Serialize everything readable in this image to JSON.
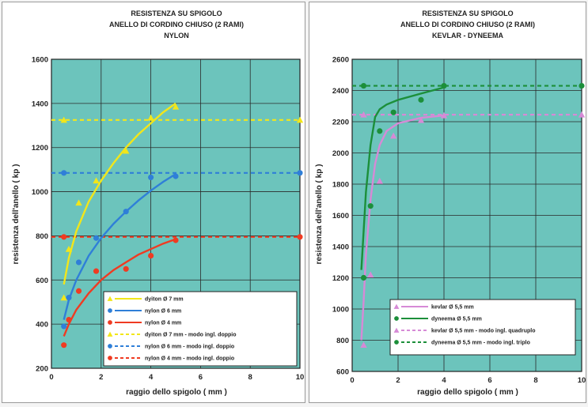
{
  "chart_data": [
    {
      "type": "scatter",
      "title_lines": [
        "RESISTENZA SU SPIGOLO",
        "ANELLO DI CORDINO CHIUSO (2 RAMI)",
        "NYLON"
      ],
      "xlabel": "raggio dello spigolo ( mm )",
      "ylabel": "resistenza dell'anello ( kp )",
      "xlim": [
        0,
        10
      ],
      "ylim": [
        200,
        1600
      ],
      "xticks": [
        "0",
        "2",
        "4",
        "6",
        "8",
        "10"
      ],
      "yticks": [
        "200",
        "400",
        "600",
        "800",
        "1000",
        "1200",
        "1400",
        "1600"
      ],
      "grid": true,
      "legend_position": "bottom-right",
      "series": [
        {
          "name": "dyiton Ø 7 mm",
          "kind": "points",
          "marker": "triangle",
          "color": "#f2e61a",
          "points": [
            [
              0.5,
              520
            ],
            [
              0.7,
              740
            ],
            [
              1.1,
              950
            ],
            [
              1.8,
              1050
            ],
            [
              3,
              1185
            ],
            [
              4,
              1335
            ],
            [
              5,
              1385
            ]
          ]
        },
        {
          "name": "nylon Ø 6 mm",
          "kind": "points",
          "marker": "circle",
          "color": "#2f7fd8",
          "points": [
            [
              0.5,
              390
            ],
            [
              0.7,
              520
            ],
            [
              1.1,
              680
            ],
            [
              1.8,
              790
            ],
            [
              3,
              910
            ],
            [
              4,
              1065
            ],
            [
              5,
              1070
            ]
          ]
        },
        {
          "name": "nylon Ø 4 mm",
          "kind": "points",
          "marker": "circle",
          "color": "#ef3b22",
          "points": [
            [
              0.5,
              305
            ],
            [
              0.7,
              420
            ],
            [
              1.1,
              550
            ],
            [
              1.8,
              640
            ],
            [
              3,
              650
            ],
            [
              4,
              710
            ],
            [
              5,
              780
            ]
          ]
        },
        {
          "name": "dyiton Ø 7 mm - modo ingl. doppio",
          "kind": "dashed",
          "marker": "triangle",
          "color": "#f2e61a",
          "value": 1325
        },
        {
          "name": "nylon Ø 6 mm - modo ingl. doppio",
          "kind": "dashed",
          "marker": "circle",
          "color": "#2f7fd8",
          "value": 1085
        },
        {
          "name": "nylon Ø 4 mm - modo ingl. doppio",
          "kind": "dashed",
          "marker": "circle",
          "color": "#ef3b22",
          "value": 795
        }
      ],
      "fits": [
        {
          "color": "#f2e61a",
          "points": [
            [
              0.5,
              580
            ],
            [
              0.7,
              700
            ],
            [
              1,
              820
            ],
            [
              1.5,
              955
            ],
            [
              2,
              1050
            ],
            [
              2.5,
              1130
            ],
            [
              3,
              1200
            ],
            [
              3.5,
              1260
            ],
            [
              4,
              1310
            ],
            [
              4.5,
              1360
            ],
            [
              5,
              1400
            ]
          ]
        },
        {
          "color": "#2f7fd8",
          "points": [
            [
              0.5,
              420
            ],
            [
              0.7,
              510
            ],
            [
              1,
              600
            ],
            [
              1.5,
              710
            ],
            [
              2,
              790
            ],
            [
              2.5,
              855
            ],
            [
              3,
              910
            ],
            [
              3.5,
              960
            ],
            [
              4,
              1005
            ],
            [
              4.5,
              1045
            ],
            [
              5,
              1080
            ]
          ]
        },
        {
          "color": "#ef3b22",
          "points": [
            [
              0.5,
              345
            ],
            [
              0.7,
              400
            ],
            [
              1,
              465
            ],
            [
              1.5,
              540
            ],
            [
              2,
              600
            ],
            [
              2.5,
              645
            ],
            [
              3,
              680
            ],
            [
              3.5,
              715
            ],
            [
              4,
              740
            ],
            [
              4.5,
              765
            ],
            [
              5,
              785
            ]
          ]
        }
      ]
    },
    {
      "type": "scatter",
      "title_lines": [
        "RESISTENZA SU SPIGOLO",
        "ANELLO DI CORDINO CHIUSO (2 RAMI)",
        "KEVLAR - DYNEEMA"
      ],
      "xlabel": "raggio dello spigolo ( mm )",
      "ylabel": "resistenza dell'anello ( kp )",
      "xlim": [
        0,
        10
      ],
      "ylim": [
        600,
        2600
      ],
      "xticks": [
        "0",
        "2",
        "4",
        "6",
        "8",
        "10"
      ],
      "yticks": [
        "600",
        "800",
        "1000",
        "1200",
        "1400",
        "1600",
        "1800",
        "2000",
        "2200",
        "2400",
        "2600"
      ],
      "grid": true,
      "legend_position": "bottom-right",
      "series": [
        {
          "name": "kevlar Ø 5,5 mm",
          "kind": "points",
          "marker": "triangle",
          "color": "#d68ad6",
          "points": [
            [
              0.5,
              770
            ],
            [
              0.8,
              1220
            ],
            [
              1.2,
              1820
            ],
            [
              1.8,
              2110
            ],
            [
              3,
              2210
            ],
            [
              4,
              2240
            ]
          ]
        },
        {
          "name": "dyneema Ø 5,5 mm",
          "kind": "points",
          "marker": "circle",
          "color": "#1c8f3a",
          "points": [
            [
              0.5,
              1200
            ],
            [
              0.8,
              1660
            ],
            [
              1.2,
              2140
            ],
            [
              1.8,
              2260
            ],
            [
              3,
              2340
            ],
            [
              4,
              2430
            ]
          ]
        },
        {
          "name": "kevlar Ø 5,5 mm - modo ingl. quadruplo",
          "kind": "dashed",
          "marker": "triangle",
          "color": "#d68ad6",
          "value": 2245
        },
        {
          "name": "dyneema Ø 5,5 mm - modo ingl. triplo",
          "kind": "dashed",
          "marker": "circle",
          "color": "#1c8f3a",
          "value": 2430
        }
      ],
      "fits": [
        {
          "color": "#d68ad6",
          "points": [
            [
              0.4,
              800
            ],
            [
              0.5,
              1050
            ],
            [
              0.6,
              1350
            ],
            [
              0.8,
              1700
            ],
            [
              1,
              1930
            ],
            [
              1.2,
              2050
            ],
            [
              1.5,
              2140
            ],
            [
              2,
              2190
            ],
            [
              3,
              2225
            ],
            [
              4,
              2240
            ]
          ]
        },
        {
          "color": "#1c8f3a",
          "points": [
            [
              0.4,
              1250
            ],
            [
              0.5,
              1500
            ],
            [
              0.6,
              1750
            ],
            [
              0.8,
              2050
            ],
            [
              1,
              2230
            ],
            [
              1.2,
              2280
            ],
            [
              1.5,
              2310
            ],
            [
              2,
              2340
            ],
            [
              3,
              2380
            ],
            [
              4,
              2420
            ]
          ]
        }
      ]
    }
  ]
}
